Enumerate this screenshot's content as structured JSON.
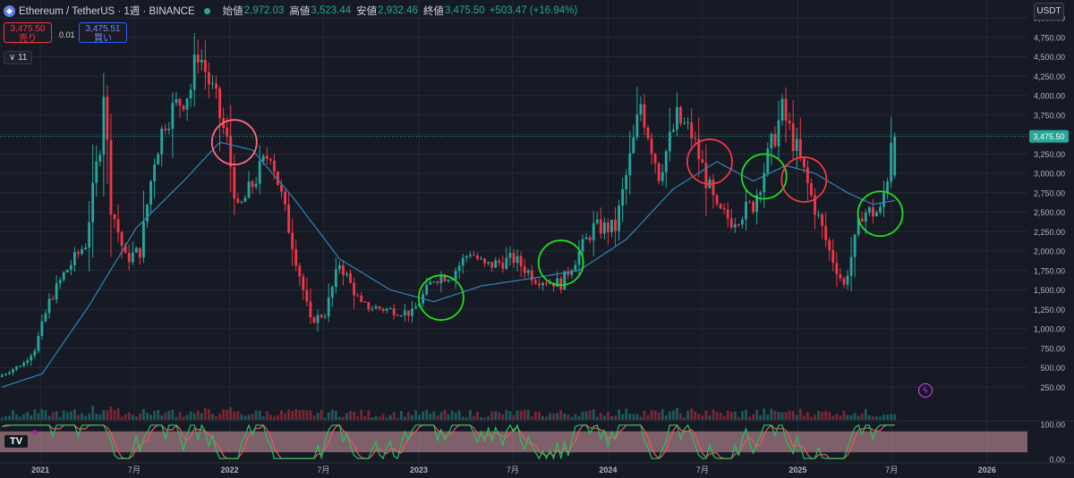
{
  "header": {
    "symbol": "Ethereum / TetherUS · 1週 · BINANCE",
    "open_label": "始値",
    "open": "2,972.03",
    "high_label": "高値",
    "high": "3,523.44",
    "low_label": "安値",
    "low": "2,932.46",
    "close_label": "終値",
    "close": "3,475.50",
    "change": "+503.47 (+16.94%)"
  },
  "trade": {
    "sell_price": "3,475.50",
    "sell_label": "売り",
    "spread": "0.01",
    "buy_price": "3,475.51",
    "buy_label": "買い"
  },
  "indicator_toggle": "∨ 11",
  "currency": "USDT",
  "last_price_label": "3,475.50",
  "colors": {
    "up": "#26a69a",
    "down": "#f23645",
    "ma": "#2f86b6",
    "circle_red": "#f23645",
    "circle_pink": "#ff6b81",
    "circle_green": "#22dd22",
    "stoch_k": "#22c55e",
    "stoch_d": "#f7525f",
    "stoch_band": "#d49aa3"
  },
  "chart_data": [
    {
      "type": "candlestick",
      "title": "",
      "interval": "1週",
      "ylim": [
        0,
        5000
      ],
      "yscale": "linear",
      "y_ticks": [
        "250.00",
        "500.00",
        "750.00",
        "1,000.00",
        "1,250.00",
        "1,500.00",
        "1,750.00",
        "2,000.00",
        "2,250.00",
        "2,500.00",
        "2,750.00",
        "3,000.00",
        "3,250.00",
        "3,500.00",
        "3,750.00",
        "4,000.00",
        "4,250.00",
        "4,500.00",
        "4,750.00",
        "5,000.00"
      ],
      "y_tick_values": [
        250,
        500,
        750,
        1000,
        1250,
        1500,
        1750,
        2000,
        2250,
        2500,
        2750,
        3000,
        3250,
        3500,
        3750,
        4000,
        4250,
        4500,
        4750,
        5000
      ],
      "x_ticks": [
        "2021",
        "7月",
        "2022",
        "7月",
        "2023",
        "7月",
        "2024",
        "7月",
        "2025",
        "7月",
        "2026"
      ],
      "x_tick_dates": [
        "2021-01-01",
        "2021-07-01",
        "2022-01-01",
        "2022-07-01",
        "2023-01-01",
        "2023-07-01",
        "2024-01-01",
        "2024-07-01",
        "2025-01-01",
        "2025-07-01",
        "2026-01-01"
      ],
      "xlim": [
        "2020-10-15",
        "2026-03-20"
      ],
      "price_anchors": [
        [
          "2020-10-19",
          380
        ],
        [
          "2020-12-07",
          560
        ],
        [
          "2020-12-28",
          740
        ],
        [
          "2021-01-25",
          1350
        ],
        [
          "2021-02-22",
          1700
        ],
        [
          "2021-04-05",
          2100
        ],
        [
          "2021-05-03",
          3400
        ],
        [
          "2021-05-10",
          4100
        ],
        [
          "2021-05-24",
          2600
        ],
        [
          "2021-06-21",
          1900
        ],
        [
          "2021-07-19",
          2000
        ],
        [
          "2021-08-16",
          3200
        ],
        [
          "2021-09-06",
          3700
        ],
        [
          "2021-10-25",
          4100
        ],
        [
          "2021-11-08",
          4600
        ],
        [
          "2021-12-13",
          3900
        ],
        [
          "2022-01-03",
          3400
        ],
        [
          "2022-01-24",
          2500
        ],
        [
          "2022-03-28",
          3300
        ],
        [
          "2022-05-09",
          2100
        ],
        [
          "2022-06-13",
          1100
        ],
        [
          "2022-07-11",
          1200
        ],
        [
          "2022-08-08",
          1850
        ],
        [
          "2022-09-19",
          1300
        ],
        [
          "2022-11-07",
          1250
        ],
        [
          "2022-12-26",
          1200
        ],
        [
          "2023-02-06",
          1650
        ],
        [
          "2023-03-13",
          1700
        ],
        [
          "2023-04-17",
          2000
        ],
        [
          "2023-05-15",
          1800
        ],
        [
          "2023-07-10",
          1900
        ],
        [
          "2023-08-21",
          1650
        ],
        [
          "2023-10-09",
          1580
        ],
        [
          "2023-11-06",
          1900
        ],
        [
          "2023-12-11",
          2300
        ],
        [
          "2024-01-22",
          2300
        ],
        [
          "2024-02-26",
          3400
        ],
        [
          "2024-03-11",
          3900
        ],
        [
          "2024-04-15",
          3000
        ],
        [
          "2024-05-20",
          3700
        ],
        [
          "2024-06-17",
          3500
        ],
        [
          "2024-08-05",
          2500
        ],
        [
          "2024-09-02",
          2400
        ],
        [
          "2024-10-14",
          2600
        ],
        [
          "2024-11-11",
          3200
        ],
        [
          "2024-12-09",
          3800
        ],
        [
          "2025-01-06",
          3300
        ],
        [
          "2025-02-03",
          2700
        ],
        [
          "2025-03-10",
          2000
        ],
        [
          "2025-04-07",
          1550
        ],
        [
          "2025-05-12",
          2500
        ],
        [
          "2025-06-16",
          2500
        ],
        [
          "2025-06-30",
          2972
        ],
        [
          "2025-07-07",
          3475.5
        ]
      ],
      "last_candle": {
        "open": 2972.03,
        "high": 3523.44,
        "low": 2932.46,
        "close": 3475.5
      },
      "moving_average_anchors": [
        [
          "2020-10-19",
          250
        ],
        [
          "2021-01-04",
          420
        ],
        [
          "2021-04-05",
          1300
        ],
        [
          "2021-07-05",
          2300
        ],
        [
          "2021-10-04",
          2900
        ],
        [
          "2021-12-13",
          3400
        ],
        [
          "2022-02-14",
          3300
        ],
        [
          "2022-05-02",
          2700
        ],
        [
          "2022-08-01",
          1900
        ],
        [
          "2022-11-07",
          1500
        ],
        [
          "2023-01-30",
          1350
        ],
        [
          "2023-05-01",
          1550
        ],
        [
          "2023-08-07",
          1650
        ],
        [
          "2023-11-06",
          1750
        ],
        [
          "2024-02-05",
          2150
        ],
        [
          "2024-05-06",
          2800
        ],
        [
          "2024-07-29",
          3150
        ],
        [
          "2024-10-07",
          2900
        ],
        [
          "2024-12-09",
          3100
        ],
        [
          "2025-02-03",
          3000
        ],
        [
          "2025-04-07",
          2750
        ],
        [
          "2025-05-26",
          2600
        ],
        [
          "2025-07-07",
          2650
        ]
      ],
      "annotations": [
        {
          "shape": "circle",
          "color": "circle_pink",
          "date": "2022-01-10",
          "price": 3400
        },
        {
          "shape": "circle",
          "color": "circle_green",
          "date": "2023-02-13",
          "price": 1400
        },
        {
          "shape": "circle",
          "color": "circle_green",
          "date": "2023-10-02",
          "price": 1850
        },
        {
          "shape": "circle",
          "color": "circle_red",
          "date": "2024-07-15",
          "price": 3150
        },
        {
          "shape": "circle",
          "color": "circle_green",
          "date": "2024-10-28",
          "price": 2960
        },
        {
          "shape": "circle",
          "color": "circle_red",
          "date": "2025-01-13",
          "price": 2920
        },
        {
          "shape": "circle",
          "color": "circle_green",
          "date": "2025-06-09",
          "price": 2480
        }
      ],
      "current_price": 3475.5
    },
    {
      "type": "bar",
      "title": "",
      "series": [
        {
          "values": "weekly volume histogram"
        }
      ]
    },
    {
      "type": "line",
      "title": "",
      "ylim": [
        0,
        100
      ],
      "y_ticks": [
        "100.00",
        "0.00"
      ],
      "band": [
        20,
        80
      ]
    }
  ]
}
